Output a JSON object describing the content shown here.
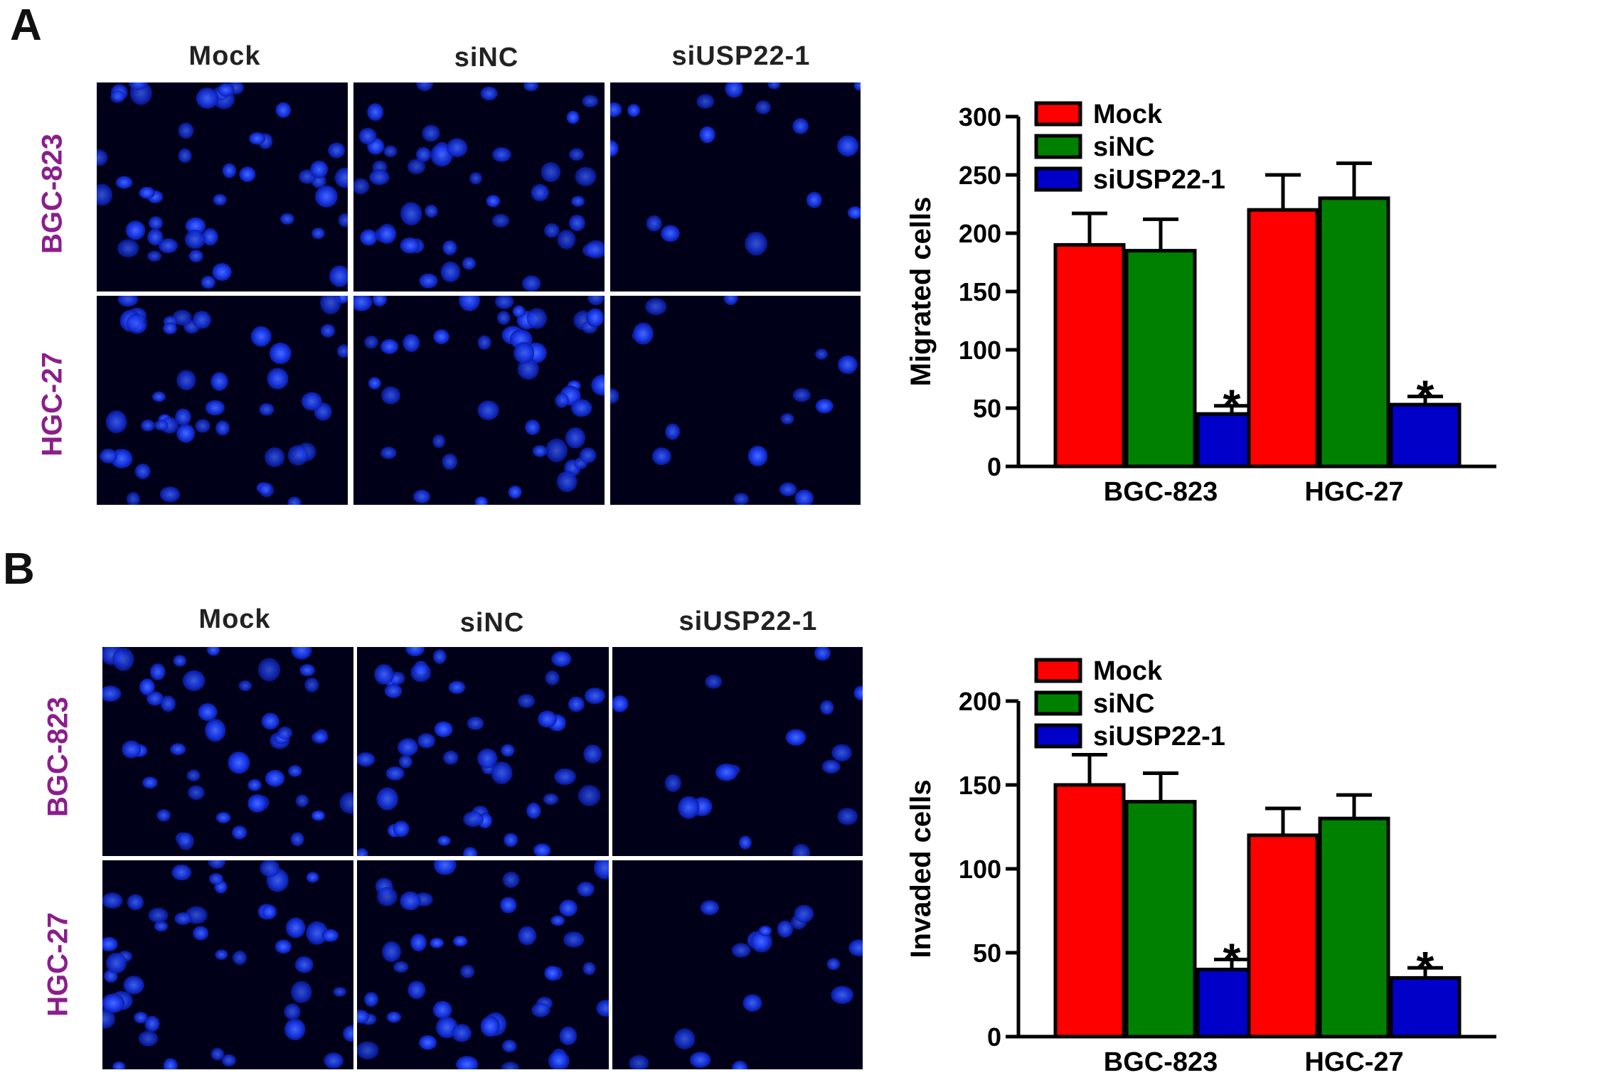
{
  "panels": [
    {
      "letter": "A",
      "columns": [
        "Mock",
        "siNC",
        "siUSP22-1"
      ],
      "rows": [
        "BGC-823",
        "HGC-27"
      ]
    },
    {
      "letter": "B",
      "columns": [
        "Mock",
        "siNC",
        "siUSP22-1"
      ],
      "rows": [
        "BGC-823",
        "HGC-27"
      ]
    }
  ],
  "chart_data": [
    {
      "type": "bar",
      "categories": [
        "BGC-823",
        "HGC-27"
      ],
      "series": [
        {
          "name": "Mock",
          "color": "#ff0000",
          "values": [
            190,
            220
          ],
          "errors": [
            27,
            30
          ]
        },
        {
          "name": "siNC",
          "color": "#008000",
          "values": [
            185,
            230
          ],
          "errors": [
            27,
            30
          ]
        },
        {
          "name": "siUSP22-1",
          "color": "#0000c8",
          "values": [
            45,
            53
          ],
          "errors": [
            7,
            7
          ]
        }
      ],
      "significance": [
        "",
        "",
        "*"
      ],
      "xlabel": "",
      "ylabel": "Migrated cells",
      "ylim": [
        0,
        300
      ],
      "yticks": [
        0,
        50,
        100,
        150,
        200,
        250,
        300
      ],
      "legend": "top-left"
    },
    {
      "type": "bar",
      "categories": [
        "BGC-823",
        "HGC-27"
      ],
      "series": [
        {
          "name": "Mock",
          "color": "#ff0000",
          "values": [
            150,
            120
          ],
          "errors": [
            18,
            16
          ]
        },
        {
          "name": "siNC",
          "color": "#008000",
          "values": [
            140,
            130
          ],
          "errors": [
            17,
            14
          ]
        },
        {
          "name": "siUSP22-1",
          "color": "#0000c8",
          "values": [
            40,
            35
          ],
          "errors": [
            6,
            6
          ]
        }
      ],
      "significance": [
        "",
        "",
        "*"
      ],
      "xlabel": "",
      "ylabel": "Invaded cells",
      "ylim": [
        0,
        200
      ],
      "yticks": [
        0,
        50,
        100,
        150,
        200
      ],
      "legend": "top-left"
    }
  ]
}
